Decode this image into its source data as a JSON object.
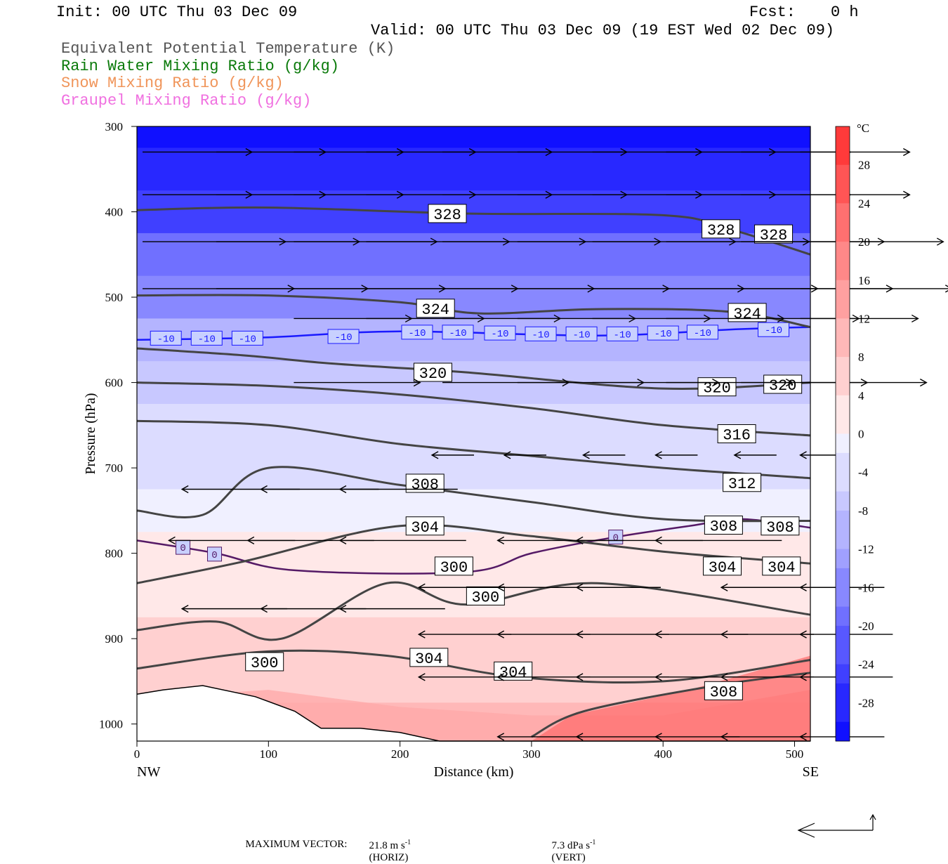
{
  "header": {
    "init": "Init: 00 UTC Thu 03 Dec 09",
    "fcst_label": "Fcst:",
    "fcst_value": "0 h",
    "valid": "Valid: 00 UTC Thu 03 Dec 09 (19 EST Wed 02 Dec 09)"
  },
  "legend": [
    {
      "label": "Equivalent Potential Temperature (K)",
      "color": "#555555"
    },
    {
      "label": "Rain Water Mixing Ratio (g/kg)",
      "color": "#0a7a0a"
    },
    {
      "label": "Snow Mixing Ratio (g/kg)",
      "color": "#f0955a"
    },
    {
      "label": "Graupel Mixing Ratio (g/kg)",
      "color": "#f070e0"
    }
  ],
  "footer": {
    "max_vector_label": "MAXIMUM VECTOR:",
    "horiz_value": "21.8 m s",
    "horiz_exp": "-1",
    "horiz_tag": "(HORIZ)",
    "vert_value": "7.3 dPa s",
    "vert_exp": "-1",
    "vert_tag": "(VERT)"
  },
  "chart_data": {
    "type": "cross-section",
    "xlabel": "Distance (km)",
    "ylabel": "Pressure (hPa)",
    "xlim": [
      0,
      512
    ],
    "ylim": [
      1020,
      300
    ],
    "x_ticks": [
      0,
      100,
      200,
      300,
      400,
      500
    ],
    "y_ticks": [
      300,
      400,
      500,
      600,
      700,
      800,
      900,
      1000
    ],
    "x_end_labels": {
      "left": "NW",
      "right": "SE"
    },
    "colorbar": {
      "unit": "°C",
      "ticks": [
        28,
        24,
        20,
        16,
        12,
        8,
        4,
        0,
        -4,
        -8,
        -12,
        -16,
        -20,
        -24,
        -28
      ],
      "range": [
        -32,
        32
      ],
      "colors_warm": [
        "#ff2020",
        "#ff3a3a",
        "#ff5555",
        "#ff7070",
        "#ff8888",
        "#ffa0a0",
        "#ffb8b8",
        "#ffd0d0",
        "#ffe8e8"
      ],
      "colors_cold": [
        "#f0f0ff",
        "#dcdcff",
        "#c8c8ff",
        "#b4b4ff",
        "#a0a0ff",
        "#8888ff",
        "#7070ff",
        "#5858ff",
        "#4040ff",
        "#2828ff",
        "#1010ff"
      ]
    },
    "temperature_field": [
      {
        "p": 300,
        "t": -31
      },
      {
        "p": 350,
        "t": -29
      },
      {
        "p": 400,
        "t": -25
      },
      {
        "p": 450,
        "t": -19
      },
      {
        "p": 500,
        "t": -15
      },
      {
        "p": 550,
        "t": -10
      },
      {
        "p": 600,
        "t": -7
      },
      {
        "p": 650,
        "t": -5
      },
      {
        "p": 700,
        "t": -3
      },
      {
        "p": 750,
        "t": -1
      },
      {
        "p": 800,
        "t": 1
      },
      {
        "p": 850,
        "t": 3
      },
      {
        "p": 900,
        "t": 5
      },
      {
        "p": 950,
        "t": 7
      },
      {
        "p": 1000,
        "t": 9
      }
    ],
    "warm_boundary_layer": [
      [
        0,
        1020
      ],
      [
        0,
        970
      ],
      [
        100,
        960
      ],
      [
        200,
        980
      ],
      [
        300,
        990
      ],
      [
        400,
        990
      ],
      [
        512,
        960
      ],
      [
        512,
        1020
      ]
    ],
    "hot_core": [
      [
        300,
        1020
      ],
      [
        330,
        990
      ],
      [
        420,
        960
      ],
      [
        512,
        920
      ],
      [
        512,
        1020
      ]
    ],
    "theta_e_contours": [
      {
        "label": "328",
        "points": [
          [
            0,
            398
          ],
          [
            100,
            395
          ],
          [
            250,
            402
          ],
          [
            400,
            404
          ],
          [
            450,
            420
          ],
          [
            512,
            450
          ]
        ],
        "labels": [
          [
            236,
            402
          ],
          [
            444,
            420
          ],
          [
            484,
            426
          ]
        ]
      },
      {
        "label": "324",
        "points": [
          [
            0,
            498
          ],
          [
            100,
            498
          ],
          [
            200,
            506
          ],
          [
            260,
            519
          ],
          [
            350,
            514
          ],
          [
            450,
            517
          ],
          [
            512,
            535
          ]
        ],
        "labels": [
          [
            227,
            513
          ],
          [
            464,
            518
          ]
        ]
      },
      {
        "label": "320",
        "points": [
          [
            0,
            560
          ],
          [
            80,
            568
          ],
          [
            150,
            578
          ],
          [
            250,
            588
          ],
          [
            400,
            607
          ],
          [
            512,
            600
          ]
        ],
        "labels": [
          [
            225,
            588
          ],
          [
            441,
            605
          ],
          [
            491,
            602
          ]
        ]
      },
      {
        "label": "316",
        "points": [
          [
            0,
            600
          ],
          [
            100,
            604
          ],
          [
            200,
            614
          ],
          [
            300,
            630
          ],
          [
            400,
            650
          ],
          [
            512,
            662
          ]
        ],
        "labels": [
          [
            456,
            660
          ]
        ]
      },
      {
        "label": "312",
        "points": [
          [
            0,
            645
          ],
          [
            100,
            650
          ],
          [
            200,
            672
          ],
          [
            300,
            686
          ],
          [
            400,
            700
          ],
          [
            512,
            712
          ]
        ],
        "labels": [
          [
            460,
            717
          ]
        ]
      },
      {
        "label": "308",
        "points": [
          [
            0,
            750
          ],
          [
            50,
            755
          ],
          [
            100,
            700
          ],
          [
            200,
            720
          ],
          [
            300,
            740
          ],
          [
            400,
            760
          ],
          [
            512,
            762
          ]
        ],
        "labels": [
          [
            219,
            718
          ],
          [
            446,
            767
          ],
          [
            489,
            768
          ]
        ]
      },
      {
        "label": "304",
        "points": [
          [
            0,
            835
          ],
          [
            80,
            810
          ],
          [
            200,
            768
          ],
          [
            300,
            780
          ],
          [
            400,
            798
          ],
          [
            512,
            812
          ]
        ],
        "labels": [
          [
            219,
            768
          ],
          [
            445,
            815
          ],
          [
            490,
            815
          ]
        ]
      },
      {
        "label": "300",
        "points": [
          [
            0,
            890
          ],
          [
            60,
            880
          ],
          [
            110,
            900
          ],
          [
            190,
            835
          ],
          [
            250,
            860
          ],
          [
            350,
            835
          ],
          [
            512,
            872
          ]
        ],
        "labels": [
          [
            241,
            815
          ],
          [
            265,
            850
          ],
          [
            97,
            927
          ]
        ]
      },
      {
        "label": "304",
        "points": [
          [
            0,
            935
          ],
          [
            100,
            915
          ],
          [
            190,
            920
          ],
          [
            290,
            945
          ],
          [
            400,
            950
          ],
          [
            512,
            925
          ]
        ],
        "labels": [
          [
            222,
            922
          ],
          [
            286,
            938
          ]
        ]
      },
      {
        "label": "308",
        "points": [
          [
            300,
            1015
          ],
          [
            340,
            985
          ],
          [
            440,
            955
          ],
          [
            512,
            940
          ]
        ],
        "labels": [
          [
            446,
            961
          ]
        ]
      }
    ],
    "isotherms": [
      {
        "label": "-10",
        "color": "#1a1aff",
        "points": [
          [
            0,
            550
          ],
          [
            100,
            547
          ],
          [
            200,
            540
          ],
          [
            350,
            545
          ],
          [
            450,
            538
          ],
          [
            512,
            535
          ]
        ],
        "labels": [
          [
            22,
            548
          ],
          [
            53,
            548
          ],
          [
            84,
            548
          ],
          [
            157,
            546
          ],
          [
            213,
            541
          ],
          [
            244,
            541
          ],
          [
            276,
            542
          ],
          [
            307,
            543
          ],
          [
            338,
            543
          ],
          [
            369,
            543
          ],
          [
            400,
            542
          ],
          [
            430,
            541
          ],
          [
            484,
            538
          ]
        ]
      },
      {
        "label": "0",
        "color": "#551a66",
        "points": [
          [
            0,
            785
          ],
          [
            60,
            800
          ],
          [
            120,
            820
          ],
          [
            250,
            822
          ],
          [
            300,
            800
          ],
          [
            360,
            782
          ],
          [
            420,
            768
          ],
          [
            460,
            760
          ],
          [
            512,
            770
          ]
        ],
        "labels": [
          [
            35,
            793
          ],
          [
            59,
            801
          ],
          [
            364,
            781
          ]
        ]
      }
    ],
    "terrain": [
      [
        0,
        965
      ],
      [
        20,
        960
      ],
      [
        50,
        955
      ],
      [
        90,
        968
      ],
      [
        120,
        985
      ],
      [
        140,
        1005
      ],
      [
        170,
        1005
      ],
      [
        200,
        1010
      ],
      [
        230,
        1020
      ],
      [
        512,
        1020
      ]
    ],
    "wind_rows": [
      {
        "p": 330,
        "dir": 1,
        "len": 26,
        "x": [
          0,
          56,
          115,
          170,
          228,
          285,
          342,
          398,
          455,
          500
        ]
      },
      {
        "p": 380,
        "dir": 1,
        "len": 26,
        "x": [
          0,
          56,
          115,
          170,
          228,
          285,
          342,
          398,
          455,
          500
        ]
      },
      {
        "p": 435,
        "dir": 1,
        "len": 34,
        "x": [
          0,
          56,
          115,
          170,
          228,
          285,
          342,
          398,
          455,
          500
        ]
      },
      {
        "p": 490,
        "dir": 1,
        "len": 36,
        "x": [
          0,
          56,
          115,
          170,
          228,
          285,
          342,
          398,
          455,
          500
        ]
      },
      {
        "p": 525,
        "dir": 1,
        "len": 28,
        "x": [
          115,
          170,
          228,
          285,
          342,
          398,
          455,
          500
        ]
      },
      {
        "p": 600,
        "dir": 1,
        "len": 30,
        "x": [
          115,
          228,
          285,
          342,
          398,
          455,
          500
        ]
      },
      {
        "p": 685,
        "dir": -1,
        "len": 10,
        "x": [
          220,
          275,
          335,
          390,
          450,
          500
        ]
      },
      {
        "p": 725,
        "dir": -1,
        "len": 28,
        "x": [
          30,
          90,
          150
        ]
      },
      {
        "p": 785,
        "dir": -1,
        "len": 30,
        "x": [
          20,
          80,
          150,
          270,
          330,
          390
        ]
      },
      {
        "p": 840,
        "dir": -1,
        "len": 20,
        "x": [
          210,
          270,
          330,
          440,
          500
        ]
      },
      {
        "p": 865,
        "dir": -1,
        "len": 25,
        "x": [
          30,
          90,
          150
        ]
      },
      {
        "p": 895,
        "dir": -1,
        "len": 22,
        "x": [
          210,
          270,
          330,
          390,
          440,
          500
        ]
      },
      {
        "p": 945,
        "dir": -1,
        "len": 22,
        "x": [
          210,
          270,
          330,
          390,
          440,
          500
        ]
      },
      {
        "p": 1015,
        "dir": -1,
        "len": 20,
        "x": [
          270,
          330,
          390,
          440,
          500
        ]
      }
    ]
  }
}
